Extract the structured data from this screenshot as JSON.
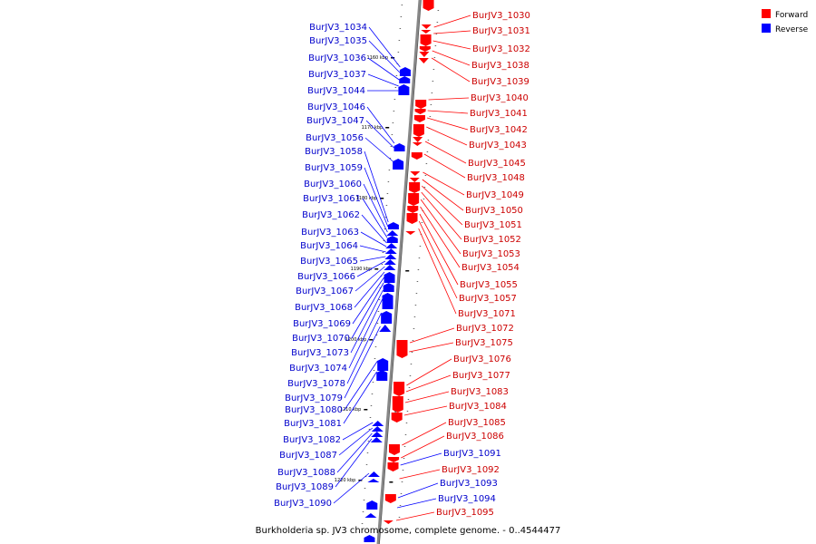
{
  "legend": [
    {
      "label": "Forward",
      "color": "#ff0000"
    },
    {
      "label": "Reverse",
      "color": "#0000ff"
    }
  ],
  "caption": "Burkholderia sp. JV3 chromosome, complete genome. - 0..4544477",
  "colors": {
    "forward": "#ff0000",
    "reverse": "#0000ff",
    "forward_text": "#cc0000",
    "reverse_text": "#0000cc",
    "axis": "#888888"
  },
  "ticks": [
    "1160 kbp",
    "1170 kbp",
    "1180 kbp",
    "1190 kbp",
    "1200 kbp",
    "1210 kbp",
    "1220 kbp"
  ],
  "right_labels": [
    {
      "text": "BurJV3_1030",
      "strand": "forward"
    },
    {
      "text": "BurJV3_1031",
      "strand": "forward"
    },
    {
      "text": "BurJV3_1032",
      "strand": "forward"
    },
    {
      "text": "BurJV3_1038",
      "strand": "forward"
    },
    {
      "text": "BurJV3_1039",
      "strand": "forward"
    },
    {
      "text": "BurJV3_1040",
      "strand": "forward"
    },
    {
      "text": "BurJV3_1041",
      "strand": "forward"
    },
    {
      "text": "BurJV3_1042",
      "strand": "forward"
    },
    {
      "text": "BurJV3_1043",
      "strand": "forward"
    },
    {
      "text": "BurJV3_1045",
      "strand": "forward"
    },
    {
      "text": "BurJV3_1048",
      "strand": "forward"
    },
    {
      "text": "BurJV3_1049",
      "strand": "forward"
    },
    {
      "text": "BurJV3_1050",
      "strand": "forward"
    },
    {
      "text": "BurJV3_1051",
      "strand": "forward"
    },
    {
      "text": "BurJV3_1052",
      "strand": "forward"
    },
    {
      "text": "BurJV3_1053",
      "strand": "forward"
    },
    {
      "text": "BurJV3_1054",
      "strand": "forward"
    },
    {
      "text": "BurJV3_1055",
      "strand": "forward"
    },
    {
      "text": "BurJV3_1057",
      "strand": "forward"
    },
    {
      "text": "BurJV3_1071",
      "strand": "forward"
    },
    {
      "text": "BurJV3_1072",
      "strand": "forward"
    },
    {
      "text": "BurJV3_1075",
      "strand": "forward"
    },
    {
      "text": "BurJV3_1076",
      "strand": "forward"
    },
    {
      "text": "BurJV3_1077",
      "strand": "forward"
    },
    {
      "text": "BurJV3_1083",
      "strand": "forward"
    },
    {
      "text": "BurJV3_1084",
      "strand": "forward"
    },
    {
      "text": "BurJV3_1085",
      "strand": "forward"
    },
    {
      "text": "BurJV3_1086",
      "strand": "forward"
    },
    {
      "text": "BurJV3_1091",
      "strand": "reverse"
    },
    {
      "text": "BurJV3_1092",
      "strand": "forward"
    },
    {
      "text": "BurJV3_1093",
      "strand": "reverse"
    },
    {
      "text": "BurJV3_1094",
      "strand": "reverse"
    },
    {
      "text": "BurJV3_1095",
      "strand": "forward"
    }
  ],
  "left_labels": [
    {
      "text": "BurJV3_1034",
      "strand": "reverse"
    },
    {
      "text": "BurJV3_1035",
      "strand": "reverse"
    },
    {
      "text": "BurJV3_1036",
      "strand": "reverse"
    },
    {
      "text": "BurJV3_1037",
      "strand": "reverse"
    },
    {
      "text": "BurJV3_1044",
      "strand": "reverse"
    },
    {
      "text": "BurJV3_1046",
      "strand": "reverse"
    },
    {
      "text": "BurJV3_1047",
      "strand": "reverse"
    },
    {
      "text": "BurJV3_1056",
      "strand": "reverse"
    },
    {
      "text": "BurJV3_1058",
      "strand": "reverse"
    },
    {
      "text": "BurJV3_1059",
      "strand": "reverse"
    },
    {
      "text": "BurJV3_1060",
      "strand": "reverse"
    },
    {
      "text": "BurJV3_1061",
      "strand": "reverse"
    },
    {
      "text": "BurJV3_1062",
      "strand": "reverse"
    },
    {
      "text": "BurJV3_1063",
      "strand": "reverse"
    },
    {
      "text": "BurJV3_1064",
      "strand": "reverse"
    },
    {
      "text": "BurJV3_1065",
      "strand": "reverse"
    },
    {
      "text": "BurJV3_1066",
      "strand": "reverse"
    },
    {
      "text": "BurJV3_1067",
      "strand": "reverse"
    },
    {
      "text": "BurJV3_1068",
      "strand": "reverse"
    },
    {
      "text": "BurJV3_1069",
      "strand": "reverse"
    },
    {
      "text": "BurJV3_1070",
      "strand": "reverse"
    },
    {
      "text": "BurJV3_1073",
      "strand": "reverse"
    },
    {
      "text": "BurJV3_1074",
      "strand": "reverse"
    },
    {
      "text": "BurJV3_1078",
      "strand": "reverse"
    },
    {
      "text": "BurJV3_1079",
      "strand": "reverse"
    },
    {
      "text": "BurJV3_1080",
      "strand": "reverse"
    },
    {
      "text": "BurJV3_1081",
      "strand": "reverse"
    },
    {
      "text": "BurJV3_1082",
      "strand": "reverse"
    },
    {
      "text": "BurJV3_1087",
      "strand": "reverse"
    },
    {
      "text": "BurJV3_1088",
      "strand": "reverse"
    },
    {
      "text": "BurJV3_1089",
      "strand": "reverse"
    },
    {
      "text": "BurJV3_1090",
      "strand": "reverse"
    }
  ]
}
